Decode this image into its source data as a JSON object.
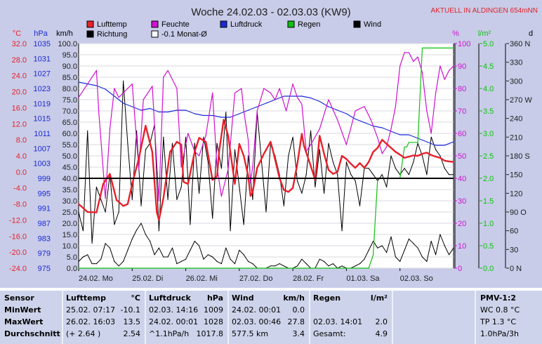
{
  "header": {
    "title": "Woche 24.02.03 - 02.03.03 (KW9)",
    "badge": "AKTUELL IN ALDINGEN 654mNN",
    "badge_color": "#e0202a"
  },
  "colors": {
    "temp": "#e8202a",
    "humidity": "#d010d0",
    "pressure": "#1a28d8",
    "rain": "#10c010",
    "wind": "#000000",
    "direction": "#000000",
    "plot_bg": "#ffffff",
    "axis_text": "#202020"
  },
  "legend": {
    "items": [
      {
        "label": "Lufttemp",
        "color": "#e8202a"
      },
      {
        "label": "Feuchte",
        "color": "#d010d0"
      },
      {
        "label": "Luftdruck",
        "color": "#1a28d8"
      },
      {
        "label": "Regen",
        "color": "#10c010"
      },
      {
        "label": "Wind",
        "color": "#000000"
      },
      {
        "label": "Richtung",
        "color": "#000000"
      },
      {
        "label": "-0.1 Monat-Ø",
        "color": "#ffffff"
      }
    ]
  },
  "chart_data": {
    "type": "line",
    "x_start_label": "24.02.",
    "x_range_hours": [
      0,
      168
    ],
    "x_ticks": [
      {
        "label": "24.02.  Mo",
        "hour": 0
      },
      {
        "label": "25.02.  Di",
        "hour": 24
      },
      {
        "label": "26.02.  Mi",
        "hour": 48
      },
      {
        "label": "27.02.  Do",
        "hour": 72
      },
      {
        "label": "28.02.  Fr",
        "hour": 96
      },
      {
        "label": "01.03.  Sa",
        "hour": 120
      },
      {
        "label": "02.03.  So",
        "hour": 144
      }
    ],
    "axes": {
      "temp": {
        "unit": "°C",
        "range": [
          -24,
          32
        ],
        "ticks": [
          "32.0",
          "28.0",
          "24.0",
          "20.0",
          "16.0",
          "12.0",
          "8.0",
          "4.0",
          "0.0",
          "-4.0",
          "-8.0",
          "-12.0",
          "-16.0",
          "-20.0",
          "-24.0"
        ]
      },
      "pressure": {
        "unit": "hPa",
        "range": [
          975,
          1039
        ],
        "ticks": [
          "1035",
          "1031",
          "1027",
          "1023",
          "1019",
          "1015",
          "1011",
          "1007",
          "1003",
          "999",
          "995",
          "991",
          "987",
          "983",
          "979",
          "975"
        ]
      },
      "wind_speed": {
        "unit": "km/h",
        "range": [
          0,
          100
        ],
        "ticks": [
          "100.0",
          "95.0",
          "90.0",
          "85.0",
          "80.0",
          "75.0",
          "70.0",
          "65.0",
          "60.0",
          "55.0",
          "50.0",
          "45.0",
          "40.0",
          "35.0",
          "30.0",
          "25.0",
          "20.0",
          "15.0",
          "10.0",
          "5.0",
          "0.0"
        ]
      },
      "humidity": {
        "unit": "%",
        "range": [
          0,
          100
        ],
        "ticks": [
          "100",
          "90",
          "80",
          "70",
          "60",
          "50",
          "40",
          "30",
          "20",
          "10",
          "0"
        ]
      },
      "rain": {
        "unit": "l/m²",
        "range": [
          0,
          5
        ],
        "ticks": [
          "5.0",
          "4.5",
          "4.0",
          "3.5",
          "3.0",
          "2.5",
          "2.0",
          "1.5",
          "1.0",
          "0.5",
          "0.0"
        ]
      },
      "direction": {
        "unit": "d",
        "range": [
          0,
          360
        ],
        "ticks": [
          "360 N",
          "330",
          "300",
          "270 W",
          "240",
          "210",
          "180 S",
          "150",
          "120",
          "90 O",
          "60",
          "30",
          "0  N"
        ]
      }
    },
    "reference_line": {
      "axis": "wind_speed",
      "value": 40
    },
    "series": [
      {
        "name": "Lufttemp",
        "axis": "temp",
        "color": "#e8202a",
        "x": [
          0,
          4,
          8,
          11,
          14,
          17,
          20,
          22,
          24,
          27,
          30,
          33,
          35,
          36,
          38,
          41,
          44,
          46,
          47,
          49,
          52,
          54,
          57,
          60,
          62,
          63,
          65,
          67,
          68,
          70,
          72,
          74,
          76,
          77,
          78,
          80,
          83,
          86,
          87,
          90,
          92,
          94,
          96,
          98,
          100,
          101,
          104,
          106,
          108,
          110,
          112,
          114,
          116,
          118,
          120,
          122,
          124,
          126,
          128,
          130,
          132,
          134,
          136,
          138,
          140,
          142,
          144,
          146,
          148,
          150,
          152,
          154,
          156,
          158,
          160,
          162,
          164,
          166,
          168
        ],
        "y": [
          -8.0,
          -10.0,
          -10.1,
          -3.0,
          -0.5,
          -7.0,
          -8.5,
          -8.0,
          -3.0,
          3.4,
          11.5,
          5.0,
          -10.0,
          -12.0,
          -6.5,
          5.0,
          7.5,
          6.8,
          -2.5,
          -3.0,
          5.0,
          8.5,
          7.5,
          -2.0,
          -1.0,
          5.3,
          13.0,
          9.0,
          5.0,
          -3.0,
          7.0,
          4.0,
          -1.0,
          -6.0,
          -5.0,
          1.0,
          4.5,
          7.5,
          5.5,
          -1.5,
          -4.5,
          -5.0,
          -4.0,
          2.0,
          9.5,
          6.5,
          1.5,
          -2.0,
          9.0,
          4.5,
          0.5,
          -0.5,
          0.0,
          4.0,
          3.2,
          2.0,
          1.0,
          2.2,
          1.0,
          2.5,
          5.0,
          6.0,
          8.0,
          7.0,
          6.0,
          5.0,
          4.3,
          3.5,
          3.8,
          4.1,
          4.0,
          4.5,
          4.8,
          4.2,
          3.8,
          3.5,
          2.8,
          2.6,
          2.5
        ]
      },
      {
        "name": "Feuchte",
        "axis": "humidity",
        "color": "#d010d0",
        "x": [
          0,
          4,
          8,
          9,
          12,
          14,
          16,
          18,
          22,
          24,
          27,
          29,
          33,
          36,
          38,
          40,
          44,
          46,
          47,
          49,
          52,
          54,
          57,
          60,
          62,
          64,
          67,
          70,
          73,
          74,
          76,
          77,
          78,
          80,
          83,
          86,
          88,
          90,
          93,
          96,
          98,
          100,
          102,
          104,
          108,
          112,
          116,
          120,
          124,
          128,
          131,
          134,
          136,
          138,
          140,
          142,
          144,
          146,
          148,
          150,
          152,
          154,
          156,
          158,
          160,
          162,
          164,
          166,
          168
        ],
        "y": [
          76,
          82,
          88,
          70,
          31,
          62,
          80,
          76,
          80,
          82,
          44,
          75,
          81,
          30,
          85,
          88,
          80,
          45,
          50,
          60,
          52,
          50,
          59,
          78,
          45,
          32,
          44,
          78,
          80,
          70,
          57,
          38,
          45,
          70,
          80,
          78,
          75,
          80,
          70,
          82,
          76,
          73,
          52,
          55,
          62,
          75,
          66,
          55,
          70,
          72,
          66,
          58,
          51,
          54,
          62,
          72,
          90,
          96,
          96,
          92,
          94,
          87,
          70,
          60,
          78,
          90,
          84,
          88,
          90
        ]
      },
      {
        "name": "Luftdruck",
        "axis": "pressure",
        "color": "#1a28d8",
        "x": [
          0,
          4,
          8,
          12,
          16,
          20,
          24,
          28,
          32,
          36,
          40,
          44,
          48,
          52,
          56,
          60,
          64,
          68,
          72,
          76,
          80,
          84,
          88,
          92,
          96,
          100,
          104,
          108,
          112,
          116,
          120,
          124,
          128,
          132,
          136,
          140,
          144,
          148,
          152,
          156,
          160,
          164,
          168
        ],
        "y": [
          1028,
          1027.5,
          1027,
          1026,
          1024,
          1022,
          1021,
          1020,
          1020.5,
          1019.5,
          1019.5,
          1020,
          1020,
          1019,
          1018.5,
          1018.5,
          1018,
          1018,
          1019,
          1020,
          1021,
          1022,
          1023,
          1024,
          1024,
          1024,
          1023.5,
          1022.5,
          1021,
          1020,
          1019,
          1017.5,
          1016.5,
          1015.5,
          1015,
          1014,
          1013,
          1013,
          1012,
          1011,
          1010,
          1010,
          1011
        ]
      },
      {
        "name": "Regen",
        "axis": "rain",
        "color": "#10c010",
        "x": [
          0,
          130,
          132,
          134,
          138,
          140,
          142,
          144,
          146,
          147,
          148,
          150,
          152,
          154,
          156,
          160,
          168
        ],
        "y": [
          0,
          0,
          0.3,
          2.0,
          2.0,
          2.0,
          2.0,
          2.0,
          2.7,
          2.7,
          2.8,
          2.8,
          2.8,
          4.9,
          4.9,
          4.9,
          4.9
        ]
      },
      {
        "name": "Wind",
        "axis": "wind_speed",
        "color": "#000000",
        "x": [
          0,
          2,
          4,
          6,
          8,
          10,
          12,
          14,
          16,
          18,
          20,
          22,
          24,
          26,
          28,
          30,
          32,
          34,
          36,
          38,
          40,
          42,
          44,
          46,
          48,
          50,
          52,
          54,
          56,
          58,
          60,
          62,
          64,
          66,
          68,
          70,
          72,
          74,
          76,
          78,
          80,
          82,
          84,
          86,
          88,
          90,
          92,
          94,
          96,
          98,
          100,
          102,
          104,
          106,
          108,
          110,
          112,
          114,
          116,
          118,
          120,
          122,
          124,
          126,
          128,
          130,
          132,
          134,
          136,
          138,
          140,
          142,
          144,
          146,
          148,
          150,
          152,
          154,
          156,
          158,
          160,
          162,
          164,
          166,
          168
        ],
        "y": [
          3,
          5,
          6,
          2,
          2,
          4,
          11,
          9,
          3,
          1,
          3,
          8,
          13,
          17,
          20,
          15,
          12,
          6,
          9,
          5,
          5,
          9,
          2,
          3,
          4,
          8,
          12,
          10,
          4,
          6,
          5,
          3,
          2,
          9,
          4,
          2,
          8,
          6,
          3,
          2,
          0,
          0,
          0,
          1,
          1,
          2,
          1,
          0,
          0,
          1,
          4,
          2,
          0,
          0,
          4,
          3,
          1,
          2,
          0,
          1,
          0,
          0,
          1,
          2,
          4,
          8,
          12,
          9,
          10,
          7,
          14,
          5,
          3,
          8,
          13,
          11,
          9,
          5,
          3,
          12,
          6,
          15,
          10,
          6,
          9
        ]
      },
      {
        "name": "Richtung",
        "axis": "direction",
        "color": "#000000",
        "x": [
          0,
          2,
          4,
          6,
          8,
          10,
          12,
          14,
          16,
          18,
          20,
          22,
          24,
          26,
          28,
          30,
          32,
          34,
          36,
          38,
          40,
          42,
          44,
          46,
          48,
          50,
          52,
          54,
          56,
          58,
          60,
          62,
          64,
          66,
          68,
          70,
          72,
          74,
          76,
          78,
          80,
          82,
          84,
          86,
          88,
          90,
          92,
          94,
          96,
          98,
          100,
          102,
          104,
          106,
          108,
          110,
          112,
          114,
          116,
          118,
          120,
          122,
          124,
          126,
          128,
          130,
          132,
          134,
          136,
          138,
          140,
          142,
          144,
          146,
          148,
          150,
          152,
          154,
          156,
          158,
          160,
          162,
          164,
          166,
          168
        ],
        "y": [
          90,
          60,
          220,
          40,
          130,
          110,
          90,
          150,
          70,
          90,
          300,
          200,
          110,
          220,
          100,
          190,
          200,
          230,
          60,
          210,
          110,
          200,
          110,
          130,
          210,
          70,
          200,
          120,
          210,
          170,
          80,
          200,
          160,
          250,
          60,
          190,
          130,
          70,
          180,
          110,
          250,
          170,
          90,
          200,
          180,
          150,
          100,
          180,
          210,
          140,
          120,
          150,
          220,
          130,
          190,
          120,
          200,
          170,
          150,
          60,
          170,
          150,
          140,
          100,
          160,
          160,
          150,
          140,
          150,
          130,
          180,
          160,
          150,
          160,
          150,
          170,
          200,
          180,
          150,
          210,
          190,
          180,
          160,
          150,
          150
        ]
      }
    ]
  },
  "stats": {
    "sensor": {
      "title": "Sensor",
      "rows": [
        "MinWert",
        "MaxWert",
        "Durchschnitt"
      ]
    },
    "temp": {
      "title": "Lufttemp",
      "unit": "°C",
      "rows": [
        {
          "time": "25.02.  07:17",
          "value": "-10.1"
        },
        {
          "time": "26.02.  16:03",
          "value": "13.5"
        },
        {
          "time": "(+ 2.64 )",
          "value": "2.54"
        }
      ]
    },
    "pressure": {
      "title": "Luftdruck",
      "unit": "hPa",
      "rows": [
        {
          "time": "02.03.  14:16",
          "value": "1009"
        },
        {
          "time": "24.02.  00:01",
          "value": "1028"
        },
        {
          "time": "^1.1hPa/h",
          "value": "1017.8"
        }
      ]
    },
    "wind": {
      "title": "Wind",
      "unit": "km/h",
      "rows": [
        {
          "time": "24.02.  00:01",
          "value": "0.0"
        },
        {
          "time": "02.03.  00:46",
          "value": "27.8"
        },
        {
          "time": "577.5 km",
          "value": "3.4"
        }
      ]
    },
    "rain": {
      "title": "Regen",
      "unit": "l/m²",
      "rows": [
        {
          "time": "",
          "value": ""
        },
        {
          "time": "02.03.  14:01",
          "value": "2.0"
        },
        {
          "time": "Gesamt:",
          "value": "4.9"
        }
      ]
    },
    "pmv": {
      "title": "PMV-1:2",
      "rows": [
        "WC 0.8 °C",
        "TP 1.3 °C",
        "1.0hPa/3h"
      ]
    }
  }
}
